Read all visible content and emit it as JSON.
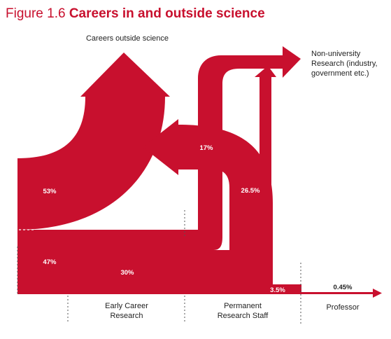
{
  "title": {
    "prefix": "Figure 1.6",
    "main": "Careers in and outside science"
  },
  "labels": {
    "outside": "Careers outside science",
    "nonuni_l1": "Non-university",
    "nonuni_l2": "Research (industry,",
    "nonuni_l3": "government etc.)"
  },
  "percentages": {
    "p53": "53%",
    "p47": "47%",
    "p30": "30%",
    "p17": "17%",
    "p265": "26.5%",
    "p35": "3.5%",
    "p045": "0.45%"
  },
  "stages": [
    {
      "line1": "Early Career",
      "line2": "Research"
    },
    {
      "line1": "Permanent",
      "line2": "Research Staff"
    },
    {
      "line1": "Professor",
      "line2": ""
    }
  ],
  "colors": {
    "flow": "#c8102e",
    "text": "#222222",
    "divider": "#555555"
  }
}
